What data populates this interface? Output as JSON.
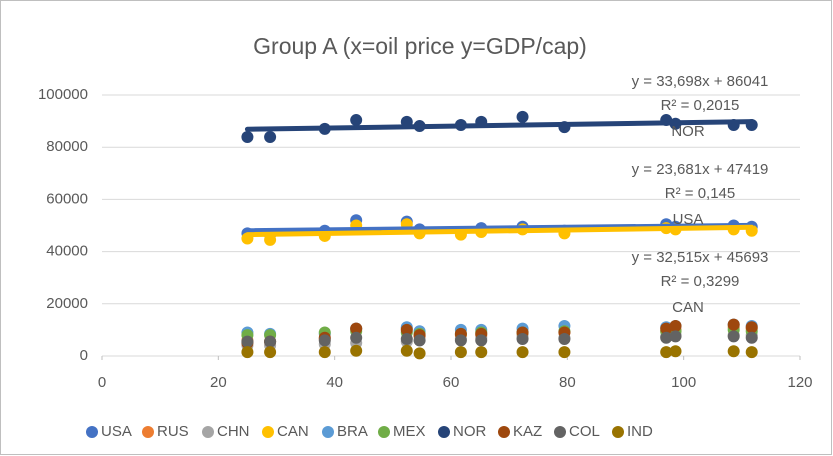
{
  "chart_data": {
    "type": "scatter",
    "title": "Group A  (x=oil price y=GDP/cap)",
    "x": [
      25.0,
      28.9,
      38.3,
      43.7,
      52.4,
      54.6,
      61.7,
      65.2,
      72.3,
      79.5,
      97.0,
      98.6,
      108.6,
      111.7
    ],
    "xlim": [
      0,
      120
    ],
    "xticks": [
      0,
      20,
      40,
      60,
      80,
      100,
      120
    ],
    "ylim": [
      0,
      100000
    ],
    "yticks": [
      0,
      20000,
      40000,
      60000,
      80000,
      100000
    ],
    "grid": true,
    "legend": "bottom",
    "series": [
      {
        "name": "USA",
        "color": "#4472c4",
        "values": [
          47000,
          46500,
          48000,
          52000,
          51500,
          48500,
          47500,
          49000,
          49500,
          48000,
          50500,
          49500,
          50000,
          49500
        ]
      },
      {
        "name": "RUS",
        "color": "#ed7d31",
        "values": [
          6000,
          5500,
          6500,
          10500,
          10500,
          7500,
          8000,
          8000,
          8500,
          9000,
          9500,
          10000,
          11000,
          10500
        ]
      },
      {
        "name": "CHN",
        "color": "#a5a5a5",
        "values": [
          4000,
          4000,
          4500,
          5000,
          5500,
          6000,
          6500,
          7000,
          7500,
          7000,
          7500,
          8000,
          8000,
          8000
        ]
      },
      {
        "name": "CAN",
        "color": "#ffc000",
        "values": [
          45000,
          44500,
          46000,
          50000,
          50500,
          47000,
          46500,
          47500,
          48500,
          47000,
          49000,
          48500,
          48500,
          48000
        ]
      },
      {
        "name": "BRA",
        "color": "#5b9bd5",
        "values": [
          9000,
          8500,
          8500,
          10500,
          11000,
          9500,
          10000,
          10000,
          10500,
          11500,
          11000,
          11500,
          12000,
          11500
        ]
      },
      {
        "name": "MEX",
        "color": "#70ad47",
        "values": [
          8000,
          8000,
          9000,
          9500,
          9000,
          8500,
          8500,
          9000,
          9000,
          9500,
          9500,
          9500,
          10000,
          9500
        ]
      },
      {
        "name": "NOR",
        "color": "#264478",
        "values": [
          83900,
          83900,
          87000,
          90400,
          89700,
          88100,
          88500,
          89700,
          91600,
          87700,
          90400,
          89000,
          88500,
          88500
        ]
      },
      {
        "name": "KAZ",
        "color": "#9e480e",
        "values": [
          5000,
          5500,
          7000,
          10500,
          10000,
          8000,
          8500,
          8500,
          9000,
          9000,
          10500,
          11500,
          12000,
          11000
        ]
      },
      {
        "name": "COL",
        "color": "#636363",
        "values": [
          5500,
          5500,
          6000,
          7000,
          6500,
          6000,
          6000,
          6000,
          6500,
          6500,
          7000,
          7500,
          7500,
          7000
        ]
      },
      {
        "name": "IND",
        "color": "#997300",
        "values": [
          1500,
          1500,
          1500,
          2000,
          2000,
          1000,
          1500,
          1500,
          1500,
          1500,
          1500,
          1800,
          1800,
          1500
        ]
      }
    ],
    "trendlines": [
      {
        "series": "NOR",
        "color": "#264478",
        "slope": 33.698,
        "intercept": 86041,
        "equation": "y = 33,698x + 86041",
        "r2": "R² = 0,2015"
      },
      {
        "series": "USA",
        "color": "#4472c4",
        "slope": 23.681,
        "intercept": 47419,
        "equation": "y = 23,681x + 47419",
        "r2": "R² = 0,145"
      },
      {
        "series": "CAN",
        "color": "#ffc000",
        "slope": 32.515,
        "intercept": 45693,
        "equation": "y = 32,515x + 45693",
        "r2": "R² = 0,3299"
      }
    ]
  }
}
